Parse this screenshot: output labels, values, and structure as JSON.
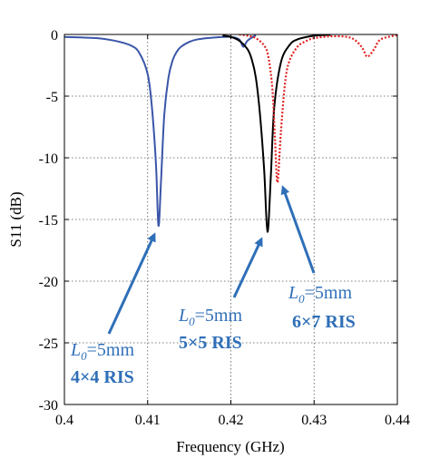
{
  "chart_data": {
    "type": "line",
    "xlabel": "Frequency (GHz)",
    "ylabel": "S11 (dB)",
    "xlim": [
      0.4,
      0.44
    ],
    "ylim": [
      -30,
      0
    ],
    "xticks": [
      "0.4",
      "0.41",
      "0.42",
      "0.43",
      "0.44"
    ],
    "yticks": [
      "0",
      "-5",
      "-10",
      "-15",
      "-20",
      "-25",
      "-30"
    ],
    "grid": "dotted",
    "legend": "none",
    "series": [
      {
        "color": "#3a55a8",
        "style": "solid",
        "x": [
          0.4,
          0.404,
          0.406,
          0.408,
          0.409,
          0.41,
          0.4105,
          0.411,
          0.4113,
          0.4116,
          0.412,
          0.4125,
          0.413,
          0.4135,
          0.414,
          0.415,
          0.416,
          0.418,
          0.42,
          0.421,
          0.4215,
          0.422,
          0.423
        ],
        "y": [
          -0.2,
          -0.3,
          -0.5,
          -0.9,
          -1.5,
          -3.2,
          -5.8,
          -10.5,
          -15.5,
          -12.0,
          -6.5,
          -3.5,
          -2.1,
          -1.4,
          -1.0,
          -0.6,
          -0.4,
          -0.25,
          -0.2,
          -0.4,
          -1.0,
          -0.5,
          -0.05
        ]
      },
      {
        "color": "#000000",
        "style": "solid",
        "x": [
          0.419,
          0.42,
          0.421,
          0.422,
          0.4225,
          0.423,
          0.4235,
          0.424,
          0.4244,
          0.4248,
          0.4252,
          0.426,
          0.427,
          0.428,
          0.43,
          0.432
        ],
        "y": [
          -0.1,
          -0.2,
          -0.5,
          -1.2,
          -2.0,
          -3.5,
          -6.5,
          -11.0,
          -16.0,
          -11.5,
          -6.0,
          -2.3,
          -0.9,
          -0.4,
          -0.1,
          -0.03
        ]
      },
      {
        "color": "#e02020",
        "style": "dotted",
        "x": [
          0.421,
          0.422,
          0.423,
          0.424,
          0.4245,
          0.425,
          0.4253,
          0.4256,
          0.426,
          0.4265,
          0.427,
          0.428,
          0.429,
          0.43,
          0.432,
          0.434,
          0.435,
          0.4358,
          0.4364,
          0.4372,
          0.438,
          0.44
        ],
        "y": [
          0.0,
          -0.1,
          -0.3,
          -0.9,
          -1.8,
          -4.5,
          -8.5,
          -12.0,
          -8.0,
          -4.0,
          -2.2,
          -1.0,
          -0.55,
          -0.3,
          -0.15,
          -0.2,
          -0.5,
          -1.1,
          -1.8,
          -1.2,
          -0.4,
          -0.05
        ]
      }
    ],
    "annotations": [
      {
        "line1": "L",
        "sub": "0",
        "line1_rest": "=5mm",
        "line2": "4×4 RIS"
      },
      {
        "line1": "L",
        "sub": "0",
        "line1_rest": "=5mm",
        "line2": "5×5 RIS"
      },
      {
        "line1": "L",
        "sub": "0",
        "line1_rest": "=5mm",
        "line2": "6×7 RIS"
      }
    ]
  }
}
